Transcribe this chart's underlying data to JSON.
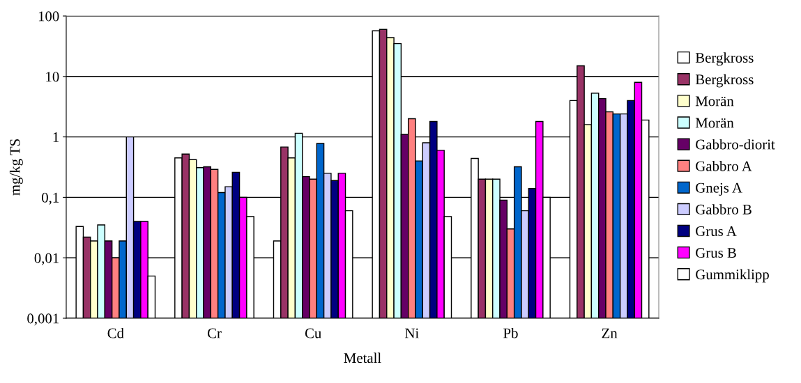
{
  "chart_data": {
    "type": "bar",
    "xlabel": "Metall",
    "ylabel": "mg/kg TS",
    "categories": [
      "Cd",
      "Cr",
      "Cu",
      "Ni",
      "Pb",
      "Zn"
    ],
    "log": true,
    "ylim": [
      0.001,
      100
    ],
    "yticks": [
      {
        "value": 0.001,
        "label": "0,001"
      },
      {
        "value": 0.01,
        "label": "0,01"
      },
      {
        "value": 0.1,
        "label": "0,1"
      },
      1,
      10,
      100
    ],
    "grid": "y",
    "legend": "right",
    "series": [
      {
        "name": "Bergkross",
        "color": "#ffffff",
        "values": [
          0.033,
          0.45,
          0.019,
          57,
          0.44,
          4
        ]
      },
      {
        "name": "Bergkross",
        "color": "#993366",
        "values": [
          0.022,
          0.52,
          0.68,
          60,
          0.2,
          15
        ]
      },
      {
        "name": "Morän",
        "color": "#ffffcc",
        "values": [
          0.019,
          0.42,
          0.45,
          44,
          0.2,
          1.6
        ]
      },
      {
        "name": "Morän",
        "color": "#ccffff",
        "values": [
          0.035,
          0.31,
          1.15,
          35,
          0.2,
          5.3
        ]
      },
      {
        "name": "Gabbro-diorit",
        "color": "#660066",
        "values": [
          0.019,
          0.32,
          0.22,
          1.1,
          0.09,
          4.3
        ]
      },
      {
        "name": "Gabbro A",
        "color": "#ff8080",
        "values": [
          0.01,
          0.29,
          0.2,
          2.0,
          0.03,
          2.6
        ]
      },
      {
        "name": "Gnejs A",
        "color": "#0066cc",
        "values": [
          0.019,
          0.12,
          0.78,
          0.4,
          0.32,
          2.4
        ]
      },
      {
        "name": "Gabbro B",
        "color": "#ccccff",
        "values": [
          1,
          0.15,
          0.25,
          0.8,
          0.06,
          2.4
        ]
      },
      {
        "name": "Grus A",
        "color": "#000080",
        "values": [
          0.04,
          0.26,
          0.19,
          1.8,
          0.14,
          4
        ]
      },
      {
        "name": "Grus B",
        "color": "#ff00ff",
        "values": [
          0.04,
          0.1,
          0.25,
          0.6,
          1.8,
          8
        ]
      },
      {
        "name": "Gummiklipp",
        "color": "#ffffff",
        "values": [
          0.005,
          0.048,
          0.06,
          0.048,
          0.1,
          1.9
        ]
      }
    ]
  }
}
